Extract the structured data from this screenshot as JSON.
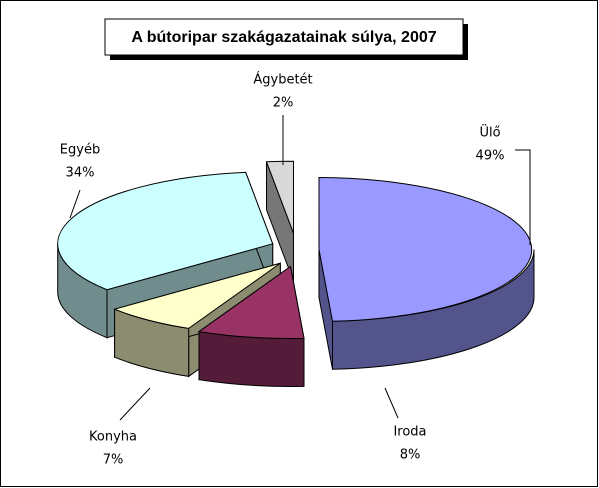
{
  "chart_data": {
    "type": "pie",
    "title": "A bútoripar szakágazatainak súlya, 2007",
    "categories": [
      "Ülő",
      "Iroda",
      "Konyha",
      "Egyéb",
      "Ágybetét"
    ],
    "values": [
      49,
      8,
      7,
      34,
      2
    ],
    "value_labels": [
      "49%",
      "8%",
      "7%",
      "34%",
      "2%"
    ],
    "colors": [
      "#9999ff",
      "#993366",
      "#ffffcc",
      "#ccffff",
      "#d9d9d9"
    ]
  }
}
